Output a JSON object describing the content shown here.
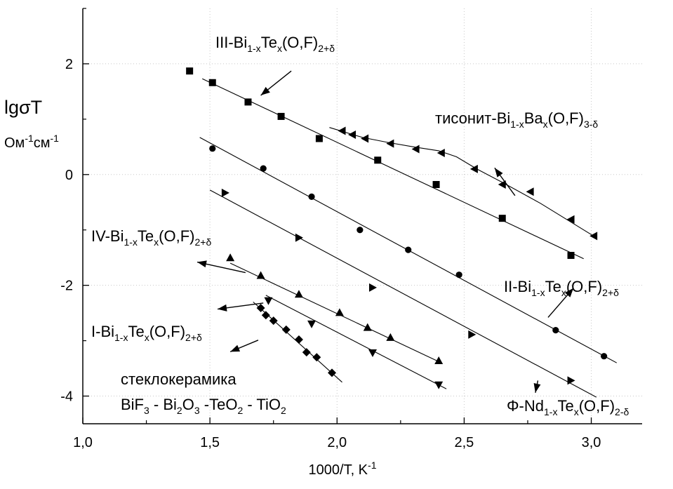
{
  "chart_data": {
    "type": "scatter",
    "title": "",
    "xlabel": "1000/T, K",
    "xlabel_sup": "-1",
    "ylabel": "lgσT",
    "ylabel_unit": [
      "Ом",
      "-1",
      "см",
      "-1"
    ],
    "xlim": [
      1.0,
      3.2
    ],
    "ylim": [
      -4.5,
      3.0
    ],
    "xticks": [
      1.0,
      1.5,
      2.0,
      2.5,
      3.0
    ],
    "xtick_labels": [
      "1,0",
      "1,5",
      "2,0",
      "2,5",
      "3,0"
    ],
    "yticks": [
      -4,
      -2,
      0,
      2
    ],
    "ytick_labels": [
      "-4",
      "-2",
      "0",
      "2"
    ],
    "grid": true,
    "series": [
      {
        "name": "III-Bi1-xTex(O,F)2+δ",
        "marker": "square",
        "x": [
          1.42,
          1.51,
          1.65,
          1.78,
          1.93,
          2.16,
          2.39,
          2.65,
          2.92
        ],
        "y": [
          1.87,
          1.66,
          1.31,
          1.05,
          0.65,
          0.26,
          -0.18,
          -0.79,
          -1.46
        ],
        "fit": [
          [
            1.47,
            1.73
          ],
          [
            2.97,
            -1.52
          ]
        ]
      },
      {
        "name": "тисонит-Bi1-xBax(O,F)3-δ",
        "marker": "triangle-left",
        "x": [
          2.02,
          2.06,
          2.11,
          2.21,
          2.31,
          2.41,
          2.54,
          2.65,
          2.76,
          2.92,
          3.01
        ],
        "y": [
          0.79,
          0.72,
          0.65,
          0.56,
          0.46,
          0.39,
          0.1,
          -0.18,
          -0.31,
          -0.81,
          -1.11
        ],
        "curve": [
          [
            1.97,
            0.85
          ],
          [
            2.1,
            0.67
          ],
          [
            2.2,
            0.58
          ],
          [
            2.3,
            0.5
          ],
          [
            2.4,
            0.43
          ],
          [
            2.47,
            0.32
          ],
          [
            2.55,
            0.1
          ],
          [
            2.65,
            -0.14
          ],
          [
            2.8,
            -0.52
          ],
          [
            3.02,
            -1.14
          ]
        ]
      },
      {
        "name": "II-Bi1-xTex(O,F)2+δ",
        "marker": "circle",
        "x": [
          1.51,
          1.71,
          1.9,
          2.09,
          2.28,
          2.48,
          2.86,
          3.05
        ],
        "y": [
          0.47,
          0.11,
          -0.4,
          -1.0,
          -1.36,
          -1.81,
          -2.81,
          -3.28
        ],
        "fit": [
          [
            1.46,
            0.67
          ],
          [
            3.1,
            -3.4
          ]
        ]
      },
      {
        "name": "Φ-Nd1-xTex(O,F)2-δ",
        "marker": "triangle-right",
        "x": [
          1.56,
          1.85,
          2.14,
          2.53,
          2.92
        ],
        "y": [
          -0.33,
          -1.14,
          -2.04,
          -2.89,
          -3.72
        ],
        "fit": [
          [
            1.5,
            -0.28
          ],
          [
            3.02,
            -4.02
          ]
        ]
      },
      {
        "name": "IV-Bi1-xTex(O,F)2+δ",
        "marker": "triangle-up",
        "x": [
          1.58,
          1.7,
          1.85,
          2.01,
          2.12,
          2.21,
          2.4
        ],
        "y": [
          -1.5,
          -1.82,
          -2.16,
          -2.49,
          -2.76,
          -2.94,
          -3.36
        ],
        "fit": [
          [
            1.58,
            -1.6
          ],
          [
            2.41,
            -3.4
          ]
        ]
      },
      {
        "name": "I-Bi1-xTex(O,F)2+δ",
        "marker": "triangle-down",
        "x": [
          1.73,
          1.9,
          2.14,
          2.4
        ],
        "y": [
          -2.28,
          -2.7,
          -3.22,
          -3.8
        ],
        "fit": [
          [
            1.72,
            -2.18
          ],
          [
            2.43,
            -3.87
          ]
        ]
      },
      {
        "name": "стеклокерамика BiF3 - Bi2O3 -TeO2 - TiO2",
        "marker": "diamond",
        "x": [
          1.7,
          1.72,
          1.75,
          1.8,
          1.85,
          1.88,
          1.92,
          1.98
        ],
        "y": [
          -2.41,
          -2.54,
          -2.64,
          -2.8,
          -2.98,
          -3.21,
          -3.3,
          -3.58
        ],
        "fit": [
          [
            1.67,
            -2.3
          ],
          [
            2.02,
            -3.75
          ]
        ]
      }
    ],
    "annotations": [
      {
        "name": "III",
        "head": [
          1.7,
          1.43
        ],
        "tail": [
          1.82,
          1.87
        ]
      },
      {
        "name": "tysonite",
        "head": [
          2.62,
          0.12
        ],
        "tail": [
          2.7,
          -0.38
        ]
      },
      {
        "name": "IV",
        "head": [
          1.45,
          -1.58
        ],
        "tail": [
          1.64,
          -1.77
        ]
      },
      {
        "name": "II",
        "head": [
          2.93,
          -2.05
        ],
        "tail": [
          2.83,
          -2.58
        ]
      },
      {
        "name": "I",
        "head": [
          1.53,
          -2.43
        ],
        "tail": [
          1.71,
          -2.32
        ]
      },
      {
        "name": "glass",
        "head": [
          1.58,
          -3.2
        ],
        "tail": [
          1.69,
          -2.99
        ]
      },
      {
        "name": "Phi",
        "head": [
          2.78,
          -3.94
        ],
        "tail": [
          2.79,
          -3.72
        ]
      }
    ]
  },
  "labels": {
    "III": {
      "pre": "III-Bi",
      "s1": "1-x",
      "mid": "Te",
      "s2": "x",
      "post": "(O,F)",
      "s3": "2+δ"
    },
    "tysonite": {
      "pre": "тисонит-Bi",
      "s1": "1-x",
      "mid": "Ba",
      "s2": "x",
      "post": "(O,F)",
      "s3": "3-δ"
    },
    "IV": {
      "pre": "IV-Bi",
      "s1": "1-x",
      "mid": "Te",
      "s2": "x",
      "post": "(O,F)",
      "s3": "2+δ"
    },
    "II": {
      "pre": "II-Bi",
      "s1": "1-x",
      "mid": "Te",
      "s2": "x",
      "post": "(O,F)",
      "s3": "2+δ"
    },
    "I": {
      "pre": "I-Bi",
      "s1": "1-x",
      "mid": "Te",
      "s2": "x",
      "post": "(O,F)",
      "s3": "2+δ"
    },
    "Phi": {
      "pre": "Φ-Nd",
      "s1": "1-x",
      "mid": "Te",
      "s2": "x",
      "post": "(O,F)",
      "s3": "2-δ"
    },
    "glass_line1": "стеклокерамика",
    "glass_line2": {
      "a": "BiF",
      "a_sub": "3",
      "b": " - Bi",
      "b_sub": "2",
      "c": "O",
      "c_sub": "3",
      "d": " -TeO",
      "d_sub": "2",
      "e": " - TiO",
      "e_sub": "2"
    }
  }
}
